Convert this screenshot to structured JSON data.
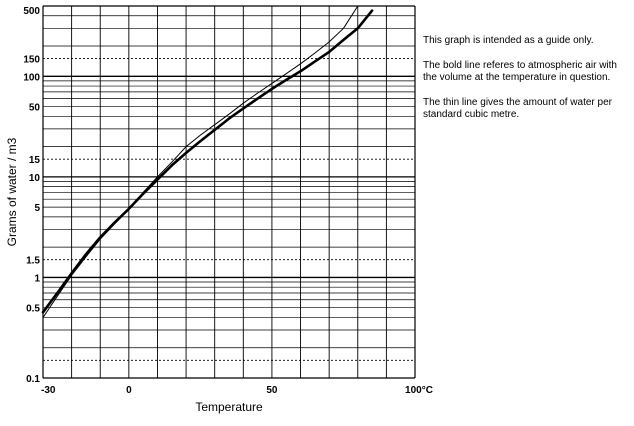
{
  "chart_data": {
    "type": "line",
    "title": "",
    "xlabel": "Temperature",
    "ylabel": "Grams of water / m3",
    "xlim": [
      -30,
      100
    ],
    "ylim": [
      0.1,
      500
    ],
    "yscale": "log",
    "grid": true,
    "x_ticks": [
      "-30",
      "0",
      "50",
      "100°C"
    ],
    "y_ticks": [
      "0.1",
      "0.5",
      "1",
      "1.5",
      "5",
      "10",
      "15",
      "50",
      "100",
      "150",
      "500"
    ],
    "series": [
      {
        "style": "bold",
        "x": [
          -30,
          -25,
          -20,
          -15,
          -10,
          -5,
          0,
          5,
          10,
          15,
          20,
          25,
          30,
          35,
          40,
          45,
          50,
          55,
          60,
          65,
          70,
          75,
          80,
          85
        ],
        "y": [
          0.45,
          0.7,
          1.1,
          1.7,
          2.5,
          3.5,
          4.8,
          6.8,
          9.4,
          13,
          17.3,
          22.7,
          29.3,
          38,
          48,
          60,
          75,
          92,
          112,
          140,
          175,
          230,
          300,
          450
        ]
      },
      {
        "style": "thin",
        "x": [
          -30,
          -25,
          -20,
          -15,
          -10,
          -5,
          0,
          5,
          10,
          15,
          20,
          25,
          30,
          35,
          40,
          45,
          50,
          55,
          60,
          65,
          70,
          75,
          80
        ],
        "y": [
          0.4,
          0.65,
          1.05,
          1.6,
          2.4,
          3.4,
          4.8,
          7,
          10,
          14,
          20,
          26,
          33,
          42,
          54,
          68,
          85,
          106,
          133,
          170,
          220,
          300,
          500
        ]
      }
    ]
  },
  "notes": [
    "This graph is intended as a guide only.",
    "The bold line referes to atmospheric air with the volume at the temperature in question.",
    "The thin line gives the amount of water per standard cubic metre."
  ]
}
